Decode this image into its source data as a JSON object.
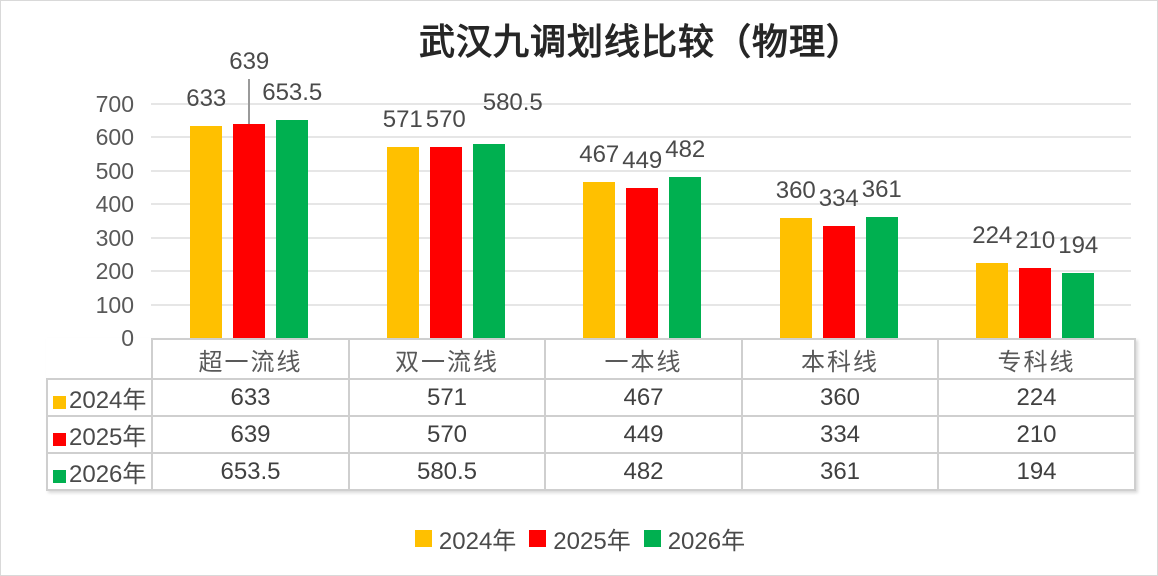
{
  "chart_data": {
    "type": "bar",
    "title": "武汉九调划线比较（物理）",
    "categories": [
      "超一流线",
      "双一流线",
      "一本线",
      "本科线",
      "专科线"
    ],
    "series": [
      {
        "name": "2024年",
        "color": "#FFC000",
        "values": [
          633,
          571,
          467,
          360,
          224
        ]
      },
      {
        "name": "2025年",
        "color": "#FF0000",
        "values": [
          639,
          570,
          449,
          334,
          210
        ]
      },
      {
        "name": "2026年",
        "color": "#00B050",
        "values": [
          653.5,
          580.5,
          482,
          361,
          194
        ]
      }
    ],
    "y_axis": {
      "min": 0,
      "max": 700,
      "tick_step": 100,
      "ticks": [
        0,
        100,
        200,
        300,
        400,
        500,
        600,
        700
      ]
    },
    "grid": true,
    "data_labels": true,
    "legend_position": "bottom",
    "table_shown": true
  },
  "colors": {
    "grid": "#E6E6E6",
    "axis_text": "#595959",
    "label_text": "#4A4A4A",
    "table_border": "#CFCFCF",
    "canvas_border": "#D9D9D9"
  }
}
